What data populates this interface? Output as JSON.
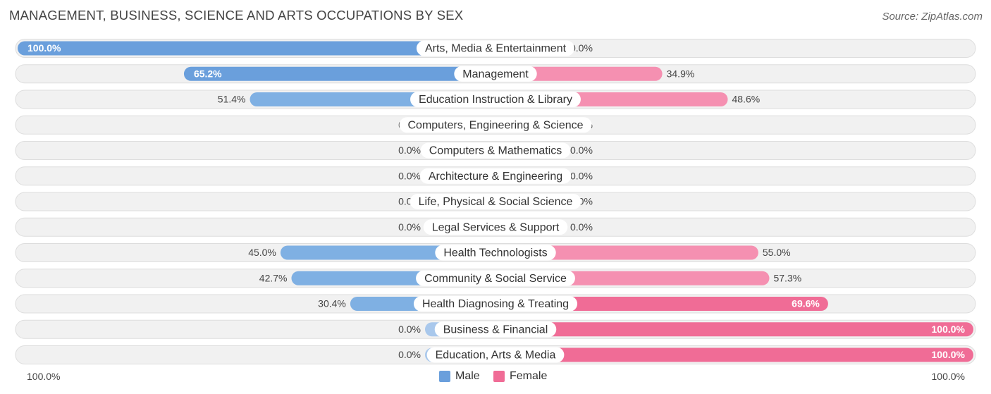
{
  "title": "MANAGEMENT, BUSINESS, SCIENCE AND ARTS OCCUPATIONS BY SEX",
  "source": "Source: ZipAtlas.com",
  "colors": {
    "male_strong": "#6a9fdc",
    "male_light": "#a9c8ec",
    "female_strong": "#f06c96",
    "female_light": "#f7aec4",
    "track": "#f1f1f1",
    "track_border": "#dddddd"
  },
  "legend": {
    "male_label": "Male",
    "female_label": "Female"
  },
  "axis": {
    "left_label": "100.0%",
    "right_label": "100.0%"
  },
  "chart_data": {
    "type": "bar",
    "orientation": "horizontal-diverging",
    "title": "MANAGEMENT, BUSINESS, SCIENCE AND ARTS OCCUPATIONS BY SEX",
    "categories": [
      "Arts, Media & Entertainment",
      "Management",
      "Education Instruction & Library",
      "Computers, Engineering & Science",
      "Computers & Mathematics",
      "Architecture & Engineering",
      "Life, Physical & Social Science",
      "Legal Services & Support",
      "Health Technologists",
      "Community & Social Service",
      "Health Diagnosing & Treating",
      "Business & Financial",
      "Education, Arts & Media"
    ],
    "series": [
      {
        "name": "Male",
        "values": [
          100.0,
          65.2,
          51.4,
          0.0,
          0.0,
          0.0,
          0.0,
          0.0,
          45.0,
          42.7,
          30.4,
          0.0,
          0.0
        ],
        "labels": [
          "100.0%",
          "65.2%",
          "51.4%",
          "0.0%",
          "0.0%",
          "0.0%",
          "0.0%",
          "0.0%",
          "45.0%",
          "42.7%",
          "30.4%",
          "0.0%",
          "0.0%"
        ]
      },
      {
        "name": "Female",
        "values": [
          0.0,
          34.9,
          48.6,
          0.0,
          0.0,
          0.0,
          0.0,
          0.0,
          55.0,
          57.3,
          69.6,
          100.0,
          100.0
        ],
        "labels": [
          "0.0%",
          "34.9%",
          "48.6%",
          "0.0%",
          "0.0%",
          "0.0%",
          "0.0%",
          "0.0%",
          "55.0%",
          "57.3%",
          "69.6%",
          "100.0%",
          "100.0%"
        ]
      }
    ],
    "xlim": [
      -100,
      100
    ],
    "legend_position": "bottom-center"
  }
}
